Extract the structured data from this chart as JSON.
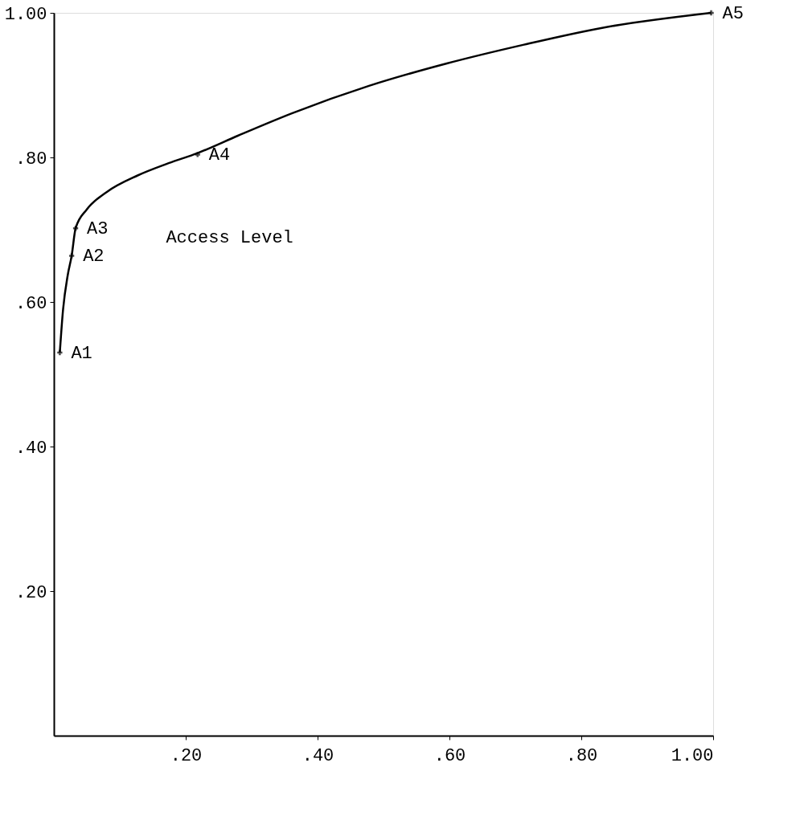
{
  "chart_data": {
    "type": "line",
    "series": [
      {
        "color": "#000000",
        "x": [
          0.009,
          0.014,
          0.021,
          0.027,
          0.033,
          0.05,
          0.08,
          0.127,
          0.174,
          0.218,
          0.279,
          0.361,
          0.478,
          0.596,
          0.713,
          0.83,
          0.997
        ],
        "values": [
          0.53,
          0.59,
          0.637,
          0.664,
          0.702,
          0.728,
          0.752,
          0.775,
          0.792,
          0.806,
          0.83,
          0.861,
          0.899,
          0.93,
          0.956,
          0.979,
          1.0
        ]
      },
      {
        "type": "scatter",
        "color": "#000000",
        "marker": "cross",
        "x": [
          0.009,
          0.027,
          0.033,
          0.218,
          0.997
        ],
        "values": [
          0.53,
          0.664,
          0.702,
          0.804,
          1.0
        ]
      }
    ],
    "annotations": [
      {
        "text": "A1",
        "x": 0.009,
        "y": 0.53
      },
      {
        "text": "A2",
        "x": 0.027,
        "y": 0.664
      },
      {
        "text": "A3",
        "x": 0.033,
        "y": 0.702
      },
      {
        "text": "A4",
        "x": 0.218,
        "y": 0.804
      },
      {
        "text": "A5",
        "x": 0.997,
        "y": 1.0
      },
      "Access Level"
    ],
    "xlim": [
      0,
      1
    ],
    "ylim": [
      0,
      1
    ],
    "xticks": [
      {
        "value": 0.2,
        "label": ".20"
      },
      {
        "value": 0.4,
        "label": ".40"
      },
      {
        "value": 0.6,
        "label": ".60"
      },
      {
        "value": 0.8,
        "label": ".80"
      },
      {
        "value": 1.0,
        "label": "1.00"
      }
    ],
    "yticks": [
      {
        "value": 0.2,
        "label": ".20"
      },
      {
        "value": 0.4,
        "label": ".40"
      },
      {
        "value": 0.6,
        "label": ".60"
      },
      {
        "value": 0.8,
        "label": ".80"
      },
      {
        "value": 1.0,
        "label": "1.00"
      }
    ],
    "grid": false
  }
}
